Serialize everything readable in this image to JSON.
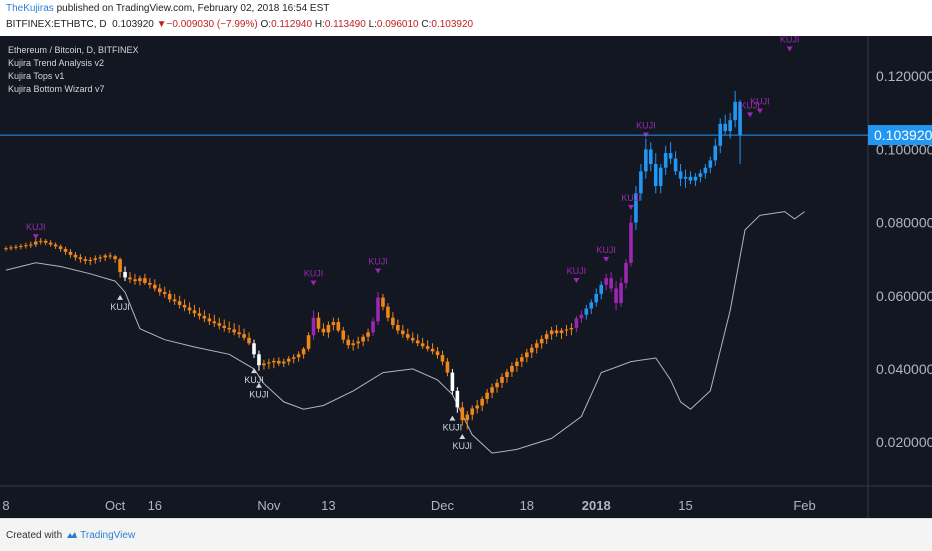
{
  "header": {
    "author": "TheKujiras",
    "published": " published on TradingView.com, February 02, 2018 16:54 EST",
    "symbol": "BITFINEX:ETHBTC, D",
    "last": "0.103920",
    "change": "−0.009030 (−7.99%)",
    "o_label": "O:",
    "o": "0.112940",
    "h_label": "H:",
    "h": "0.113490",
    "l_label": "L:",
    "l": "0.096010",
    "c_label": "C:",
    "c": "0.103920"
  },
  "legend": {
    "title": "Ethereum / Bitcoin, D, BITFINEX",
    "indicators": [
      "Kujira Trend Analysis v2",
      "Kujira Tops v1",
      "Kujira Bottom Wizard v7"
    ]
  },
  "footer": {
    "created": "Created with",
    "brand": "TradingView"
  },
  "colors": {
    "background": "#131722",
    "orange": "#f0861a",
    "blue": "#2196f3",
    "purple": "#9c27b0",
    "white": "#ffffff",
    "band": "#b2b5be",
    "price_line": "#2196f3"
  },
  "chart_data": {
    "type": "candlestick",
    "ylim": [
      0.008,
      0.131
    ],
    "yticks": [
      "0.120000",
      "0.100000",
      "0.080000",
      "0.060000",
      "0.040000",
      "0.020000"
    ],
    "ytick_values": [
      0.12,
      0.1,
      0.08,
      0.06,
      0.04,
      0.02
    ],
    "xticks": [
      "8",
      "Oct",
      "16",
      "Nov",
      "13",
      "Dec",
      "18",
      "2018",
      "15",
      "Feb"
    ],
    "xtick_days": [
      0,
      22,
      30,
      53,
      65,
      88,
      105,
      119,
      137,
      161
    ],
    "current_price": 0.10392,
    "current_label": "0.103920",
    "top_signal_label": "KUJI",
    "bottom_signal_label": "KUJI",
    "top_signals": [
      {
        "day": 6,
        "price": 0.0752
      },
      {
        "day": 62,
        "price": 0.0625
      },
      {
        "day": 75,
        "price": 0.0658
      },
      {
        "day": 115,
        "price": 0.0632
      },
      {
        "day": 121,
        "price": 0.069
      },
      {
        "day": 126,
        "price": 0.0832
      },
      {
        "day": 129,
        "price": 0.103
      },
      {
        "day": 150,
        "price": 0.1085
      },
      {
        "day": 152,
        "price": 0.1095
      },
      {
        "day": 158,
        "price": 0.1265
      }
    ],
    "bottom_signals": [
      {
        "day": 23,
        "price": 0.0605
      },
      {
        "day": 50,
        "price": 0.0405
      },
      {
        "day": 51,
        "price": 0.0365
      },
      {
        "day": 90,
        "price": 0.0275
      },
      {
        "day": 92,
        "price": 0.0225
      }
    ],
    "band_line": [
      [
        0,
        0.067
      ],
      [
        6,
        0.069
      ],
      [
        11,
        0.068
      ],
      [
        17,
        0.066
      ],
      [
        22,
        0.064
      ],
      [
        24,
        0.061
      ],
      [
        27,
        0.051
      ],
      [
        32,
        0.048
      ],
      [
        38,
        0.046
      ],
      [
        45,
        0.044
      ],
      [
        50,
        0.04
      ],
      [
        52,
        0.036
      ],
      [
        56,
        0.031
      ],
      [
        60,
        0.029
      ],
      [
        64,
        0.03
      ],
      [
        70,
        0.034
      ],
      [
        76,
        0.039
      ],
      [
        82,
        0.04
      ],
      [
        87,
        0.037
      ],
      [
        90,
        0.033
      ],
      [
        94,
        0.022
      ],
      [
        98,
        0.017
      ],
      [
        103,
        0.018
      ],
      [
        110,
        0.021
      ],
      [
        116,
        0.027
      ],
      [
        120,
        0.039
      ],
      [
        126,
        0.042
      ],
      [
        131,
        0.043
      ],
      [
        134,
        0.037
      ],
      [
        136,
        0.031
      ],
      [
        138,
        0.029
      ],
      [
        142,
        0.034
      ],
      [
        146,
        0.056
      ],
      [
        149,
        0.078
      ],
      [
        152,
        0.082
      ],
      [
        157,
        0.083
      ],
      [
        159,
        0.081
      ],
      [
        161,
        0.083
      ]
    ],
    "candles": [
      [
        0.0728,
        0.0735,
        0.0722,
        0.073
      ],
      [
        0.073,
        0.0738,
        0.0724,
        0.0732
      ],
      [
        0.0732,
        0.074,
        0.0726,
        0.0734
      ],
      [
        0.0734,
        0.0742,
        0.0727,
        0.0736
      ],
      [
        0.0736,
        0.0745,
        0.0729,
        0.0738
      ],
      [
        0.0738,
        0.0748,
        0.0731,
        0.074
      ],
      [
        0.074,
        0.076,
        0.0733,
        0.0748
      ],
      [
        0.0748,
        0.0758,
        0.074,
        0.075
      ],
      [
        0.075,
        0.0755,
        0.0738,
        0.0745
      ],
      [
        0.0745,
        0.0752,
        0.0734,
        0.074
      ],
      [
        0.074,
        0.0746,
        0.0728,
        0.0735
      ],
      [
        0.0735,
        0.074,
        0.072,
        0.0728
      ],
      [
        0.0728,
        0.0734,
        0.0712,
        0.072
      ],
      [
        0.072,
        0.0728,
        0.0704,
        0.0712
      ],
      [
        0.0712,
        0.072,
        0.0696,
        0.0705
      ],
      [
        0.0705,
        0.0714,
        0.069,
        0.07
      ],
      [
        0.07,
        0.0708,
        0.0686,
        0.0695
      ],
      [
        0.0695,
        0.0706,
        0.0684,
        0.0698
      ],
      [
        0.0698,
        0.071,
        0.0688,
        0.0702
      ],
      [
        0.0702,
        0.0712,
        0.0692,
        0.0705
      ],
      [
        0.0705,
        0.0715,
        0.0695,
        0.071
      ],
      [
        0.071,
        0.0718,
        0.07,
        0.0708
      ],
      [
        0.0708,
        0.0712,
        0.069,
        0.07
      ],
      [
        0.07,
        0.0705,
        0.065,
        0.0665
      ],
      [
        0.0665,
        0.068,
        0.064,
        0.065
      ],
      [
        0.065,
        0.0665,
        0.0635,
        0.0645
      ],
      [
        0.0645,
        0.066,
        0.063,
        0.064
      ],
      [
        0.064,
        0.0655,
        0.0628,
        0.0648
      ],
      [
        0.0648,
        0.066,
        0.063,
        0.0635
      ],
      [
        0.0635,
        0.0648,
        0.062,
        0.063
      ],
      [
        0.063,
        0.0645,
        0.0612,
        0.062
      ],
      [
        0.062,
        0.0632,
        0.06,
        0.061
      ],
      [
        0.061,
        0.0625,
        0.0595,
        0.0605
      ],
      [
        0.0605,
        0.0615,
        0.0582,
        0.059
      ],
      [
        0.059,
        0.0605,
        0.0575,
        0.0585
      ],
      [
        0.0585,
        0.06,
        0.0565,
        0.0575
      ],
      [
        0.0575,
        0.059,
        0.0558,
        0.0568
      ],
      [
        0.0568,
        0.0582,
        0.055,
        0.056
      ],
      [
        0.056,
        0.0575,
        0.0542,
        0.0552
      ],
      [
        0.0552,
        0.0568,
        0.0535,
        0.0545
      ],
      [
        0.0545,
        0.056,
        0.0528,
        0.0538
      ],
      [
        0.0538,
        0.0552,
        0.052,
        0.053
      ],
      [
        0.053,
        0.0548,
        0.0515,
        0.0525
      ],
      [
        0.0525,
        0.054,
        0.0508,
        0.0518
      ],
      [
        0.0518,
        0.0535,
        0.0502,
        0.0512
      ],
      [
        0.0512,
        0.053,
        0.0498,
        0.0508
      ],
      [
        0.0508,
        0.0525,
        0.0492,
        0.05
      ],
      [
        0.05,
        0.052,
        0.0485,
        0.0495
      ],
      [
        0.0495,
        0.051,
        0.0478,
        0.0485
      ],
      [
        0.0485,
        0.05,
        0.0465,
        0.047
      ],
      [
        0.047,
        0.048,
        0.043,
        0.044
      ],
      [
        0.044,
        0.045,
        0.0395,
        0.041
      ],
      [
        0.041,
        0.0425,
        0.0398,
        0.0415
      ],
      [
        0.0415,
        0.0428,
        0.04,
        0.0418
      ],
      [
        0.0418,
        0.043,
        0.0402,
        0.0422
      ],
      [
        0.0422,
        0.0432,
        0.0408,
        0.0415
      ],
      [
        0.0415,
        0.0428,
        0.0405,
        0.042
      ],
      [
        0.042,
        0.0435,
        0.041,
        0.0428
      ],
      [
        0.0428,
        0.044,
        0.0415,
        0.0432
      ],
      [
        0.0432,
        0.0448,
        0.042,
        0.044
      ],
      [
        0.044,
        0.046,
        0.0428,
        0.0455
      ],
      [
        0.0455,
        0.05,
        0.0448,
        0.0492
      ],
      [
        0.0492,
        0.056,
        0.048,
        0.054
      ],
      [
        0.054,
        0.0555,
        0.05,
        0.051
      ],
      [
        0.051,
        0.0525,
        0.049,
        0.05
      ],
      [
        0.05,
        0.053,
        0.0485,
        0.052
      ],
      [
        0.052,
        0.054,
        0.0505,
        0.0528
      ],
      [
        0.0528,
        0.054,
        0.05,
        0.0505
      ],
      [
        0.0505,
        0.0515,
        0.047,
        0.048
      ],
      [
        0.048,
        0.0492,
        0.0455,
        0.0465
      ],
      [
        0.0465,
        0.048,
        0.045,
        0.047
      ],
      [
        0.047,
        0.0488,
        0.0455,
        0.0475
      ],
      [
        0.0475,
        0.0495,
        0.0462,
        0.0488
      ],
      [
        0.0488,
        0.051,
        0.0475,
        0.05
      ],
      [
        0.05,
        0.054,
        0.049,
        0.053
      ],
      [
        0.053,
        0.061,
        0.052,
        0.0595
      ],
      [
        0.0595,
        0.0605,
        0.056,
        0.057
      ],
      [
        0.057,
        0.058,
        0.053,
        0.054
      ],
      [
        0.054,
        0.0555,
        0.051,
        0.052
      ],
      [
        0.052,
        0.0535,
        0.0495,
        0.0505
      ],
      [
        0.0505,
        0.052,
        0.0485,
        0.0495
      ],
      [
        0.0495,
        0.051,
        0.0478,
        0.0485
      ],
      [
        0.0485,
        0.05,
        0.047,
        0.0478
      ],
      [
        0.0478,
        0.0495,
        0.0462,
        0.047
      ],
      [
        0.047,
        0.0485,
        0.0455,
        0.0462
      ],
      [
        0.0462,
        0.0478,
        0.0448,
        0.0455
      ],
      [
        0.0455,
        0.047,
        0.044,
        0.0448
      ],
      [
        0.0448,
        0.046,
        0.0428,
        0.0438
      ],
      [
        0.0438,
        0.045,
        0.041,
        0.042
      ],
      [
        0.042,
        0.043,
        0.038,
        0.039
      ],
      [
        0.039,
        0.04,
        0.033,
        0.034
      ],
      [
        0.034,
        0.035,
        0.028,
        0.0295
      ],
      [
        0.0295,
        0.031,
        0.0245,
        0.026
      ],
      [
        0.026,
        0.0285,
        0.0235,
        0.0275
      ],
      [
        0.0275,
        0.03,
        0.026,
        0.0292
      ],
      [
        0.0292,
        0.0315,
        0.0278,
        0.03
      ],
      [
        0.03,
        0.0325,
        0.0285,
        0.0318
      ],
      [
        0.0318,
        0.0345,
        0.0305,
        0.0335
      ],
      [
        0.0335,
        0.036,
        0.032,
        0.035
      ],
      [
        0.035,
        0.0372,
        0.0335,
        0.0362
      ],
      [
        0.0362,
        0.0388,
        0.0348,
        0.0378
      ],
      [
        0.0378,
        0.04,
        0.0362,
        0.0392
      ],
      [
        0.0392,
        0.0418,
        0.0378,
        0.0408
      ],
      [
        0.0408,
        0.043,
        0.0392,
        0.042
      ],
      [
        0.042,
        0.0442,
        0.0405,
        0.0432
      ],
      [
        0.0432,
        0.0455,
        0.0418,
        0.0445
      ],
      [
        0.0445,
        0.0468,
        0.043,
        0.0458
      ],
      [
        0.0458,
        0.048,
        0.0442,
        0.047
      ],
      [
        0.047,
        0.0492,
        0.0455,
        0.0482
      ],
      [
        0.0482,
        0.0505,
        0.0468,
        0.0495
      ],
      [
        0.0495,
        0.0515,
        0.048,
        0.0505
      ],
      [
        0.0505,
        0.052,
        0.0488,
        0.0498
      ],
      [
        0.0498,
        0.0512,
        0.0482,
        0.0505
      ],
      [
        0.0505,
        0.052,
        0.049,
        0.0508
      ],
      [
        0.0508,
        0.0525,
        0.0492,
        0.0512
      ],
      [
        0.0512,
        0.0545,
        0.05,
        0.0538
      ],
      [
        0.0538,
        0.056,
        0.0525,
        0.0548
      ],
      [
        0.0548,
        0.0575,
        0.0535,
        0.0565
      ],
      [
        0.0565,
        0.059,
        0.055,
        0.0582
      ],
      [
        0.0582,
        0.062,
        0.057,
        0.0605
      ],
      [
        0.0605,
        0.064,
        0.059,
        0.063
      ],
      [
        0.063,
        0.066,
        0.0615,
        0.0648
      ],
      [
        0.0648,
        0.0665,
        0.061,
        0.062
      ],
      [
        0.062,
        0.064,
        0.056,
        0.058
      ],
      [
        0.058,
        0.065,
        0.057,
        0.0635
      ],
      [
        0.0635,
        0.07,
        0.062,
        0.069
      ],
      [
        0.069,
        0.082,
        0.068,
        0.08
      ],
      [
        0.08,
        0.09,
        0.078,
        0.088
      ],
      [
        0.088,
        0.096,
        0.086,
        0.094
      ],
      [
        0.094,
        0.103,
        0.092,
        0.1
      ],
      [
        0.1,
        0.102,
        0.094,
        0.096
      ],
      [
        0.096,
        0.099,
        0.088,
        0.09
      ],
      [
        0.09,
        0.096,
        0.088,
        0.095
      ],
      [
        0.095,
        0.101,
        0.093,
        0.099
      ],
      [
        0.099,
        0.102,
        0.096,
        0.0975
      ],
      [
        0.0975,
        0.0995,
        0.093,
        0.094
      ],
      [
        0.094,
        0.096,
        0.09,
        0.092
      ],
      [
        0.092,
        0.0945,
        0.0895,
        0.0925
      ],
      [
        0.0925,
        0.094,
        0.0905,
        0.0915
      ],
      [
        0.0915,
        0.0935,
        0.09,
        0.0925
      ],
      [
        0.0925,
        0.0945,
        0.091,
        0.0935
      ],
      [
        0.0935,
        0.096,
        0.092,
        0.095
      ],
      [
        0.095,
        0.098,
        0.0935,
        0.097
      ],
      [
        0.097,
        0.103,
        0.0955,
        0.101
      ],
      [
        0.101,
        0.1085,
        0.099,
        0.107
      ],
      [
        0.107,
        0.1095,
        0.104,
        0.105
      ],
      [
        0.105,
        0.11,
        0.103,
        0.108
      ],
      [
        0.108,
        0.116,
        0.106,
        0.113
      ],
      [
        0.113,
        0.1135,
        0.096,
        0.1039
      ]
    ]
  }
}
